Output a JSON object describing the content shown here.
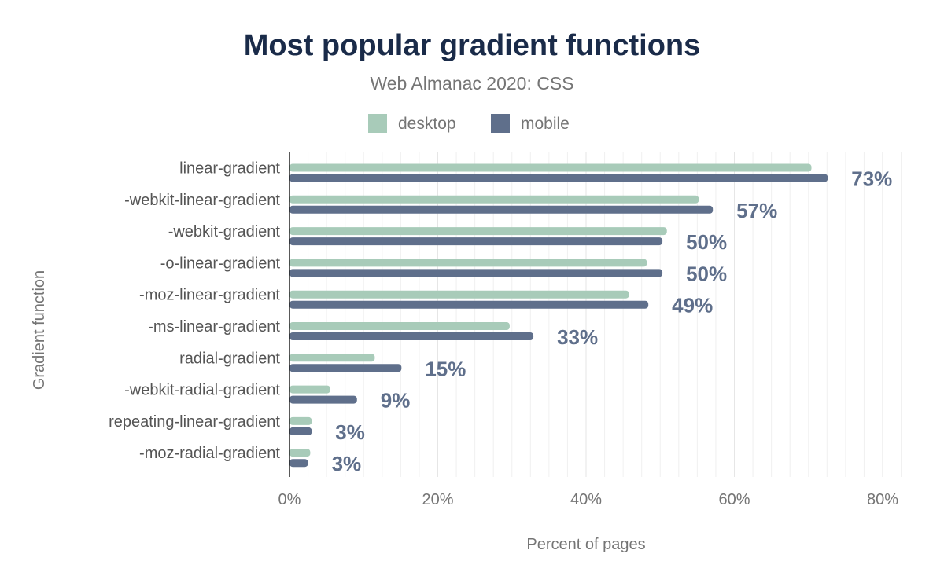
{
  "chart_data": {
    "type": "bar",
    "orientation": "horizontal",
    "title": "Most popular gradient functions",
    "subtitle": "Web Almanac 2020: CSS",
    "xlabel": "Percent of pages",
    "ylabel": "Gradient function",
    "xlim": [
      0,
      80
    ],
    "x_ticks": [
      "0%",
      "20%",
      "40%",
      "60%",
      "80%"
    ],
    "grid": true,
    "legend_position": "top",
    "categories": [
      "linear-gradient",
      "-webkit-linear-gradient",
      "-webkit-gradient",
      "-o-linear-gradient",
      "-moz-linear-gradient",
      "-ms-linear-gradient",
      "radial-gradient",
      "-webkit-radial-gradient",
      "repeating-linear-gradient",
      "-moz-radial-gradient"
    ],
    "series": [
      {
        "name": "desktop",
        "color": "#a8cbb9",
        "values": [
          70.4,
          55.2,
          50.9,
          48.2,
          45.8,
          29.7,
          11.5,
          5.5,
          3.0,
          2.8
        ]
      },
      {
        "name": "mobile",
        "color": "#5f6f8b",
        "values": [
          72.6,
          57.1,
          50.3,
          50.3,
          48.4,
          32.9,
          15.1,
          9.1,
          3.0,
          2.5
        ]
      }
    ],
    "data_labels": [
      "73%",
      "57%",
      "50%",
      "50%",
      "49%",
      "33%",
      "15%",
      "9%",
      "3%",
      "3%"
    ]
  }
}
